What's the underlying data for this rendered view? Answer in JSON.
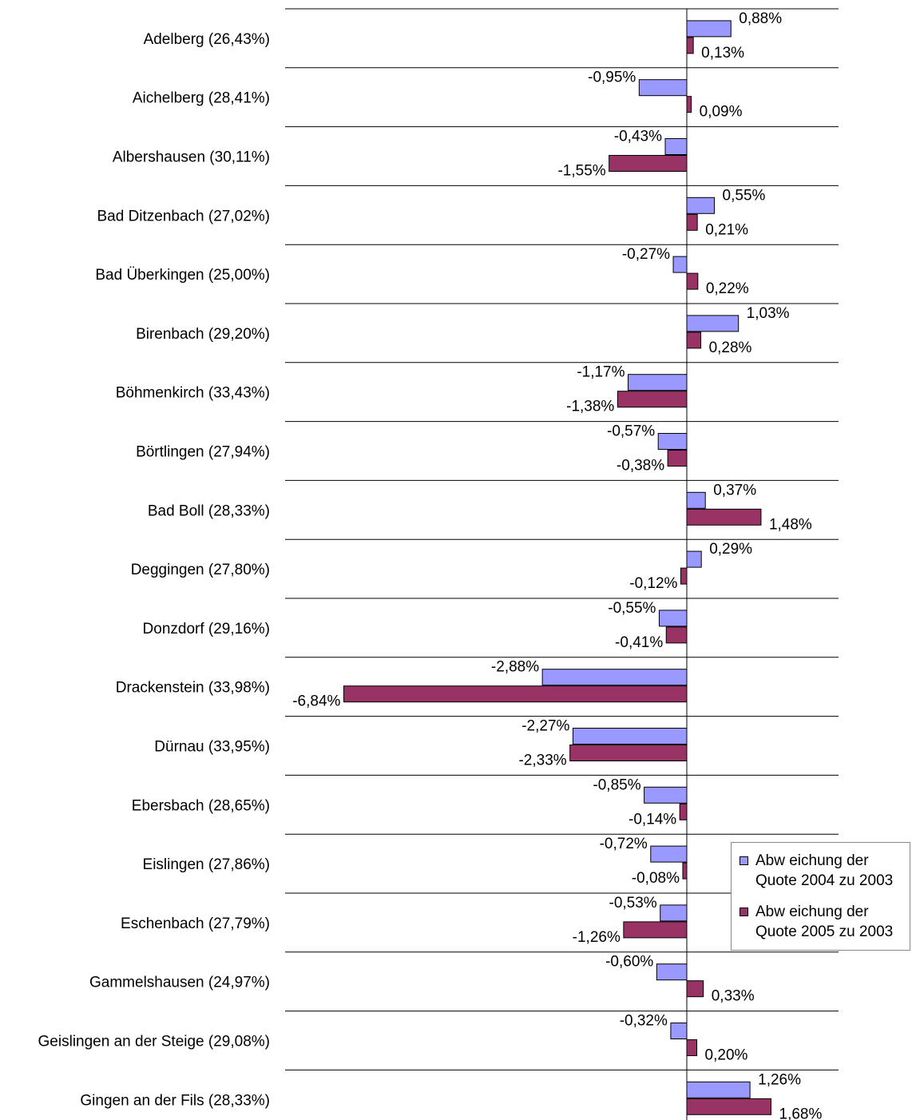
{
  "chart_data": {
    "type": "bar",
    "orientation": "horizontal",
    "categories": [
      "Adelberg (26,43%)",
      "Aichelberg (28,41%)",
      "Albershausen (30,11%)",
      "Bad Ditzenbach (27,02%)",
      "Bad Überkingen (25,00%)",
      "Birenbach (29,20%)",
      "Böhmenkirch (33,43%)",
      "Börtlingen (27,94%)",
      "Bad Boll (28,33%)",
      "Deggingen (27,80%)",
      "Donzdorf (29,16%)",
      "Drackenstein (33,98%)",
      "Dürnau (33,95%)",
      "Ebersbach (28,65%)",
      "Eislingen (27,86%)",
      "Eschenbach (27,79%)",
      "Gammelshausen (24,97%)",
      "Geislingen an der Steige (29,08%)",
      "Gingen an der Fils (28,33%)"
    ],
    "series": [
      {
        "name": "Abw eichung der Quote 2004 zu 2003",
        "color": "#9999ff",
        "values": [
          0.88,
          -0.95,
          -0.43,
          0.55,
          -0.27,
          1.03,
          -1.17,
          -0.57,
          0.37,
          0.29,
          -0.55,
          -2.88,
          -2.27,
          -0.85,
          -0.72,
          -0.53,
          -0.6,
          -0.32,
          1.26
        ],
        "labels": [
          "0,88%",
          "-0,95%",
          "-0,43%",
          "0,55%",
          "-0,27%",
          "1,03%",
          "-1,17%",
          "-0,57%",
          "0,37%",
          "0,29%",
          "-0,55%",
          "-2,88%",
          "-2,27%",
          "-0,85%",
          "-0,72%",
          "-0,53%",
          "-0,60%",
          "-0,32%",
          "1,26%"
        ]
      },
      {
        "name": "Abw eichung der Quote 2005 zu 2003",
        "color": "#993366",
        "values": [
          0.13,
          0.09,
          -1.55,
          0.21,
          0.22,
          0.28,
          -1.38,
          -0.38,
          1.48,
          -0.12,
          -0.41,
          -6.84,
          -2.33,
          -0.14,
          -0.08,
          -1.26,
          0.33,
          0.2,
          1.68
        ],
        "labels": [
          "0,13%",
          "0,09%",
          "-1,55%",
          "0,21%",
          "0,22%",
          "0,28%",
          "-1,38%",
          "-0,38%",
          "1,48%",
          "-0,12%",
          "-0,41%",
          "-6,84%",
          "-2,33%",
          "-0,14%",
          "-0,08%",
          "-1,26%",
          "0,33%",
          "0,20%",
          "1,68%"
        ]
      }
    ],
    "xlim": [
      -7.0,
      3.0
    ],
    "grid": false,
    "legend": "bottom-right"
  },
  "legend": {
    "items": [
      {
        "text": "Abw eichung der\nQuote 2004 zu 2003",
        "color": "#9999ff"
      },
      {
        "text": "Abw eichung der\nQuote 2005 zu 2003",
        "color": "#993366"
      }
    ]
  }
}
